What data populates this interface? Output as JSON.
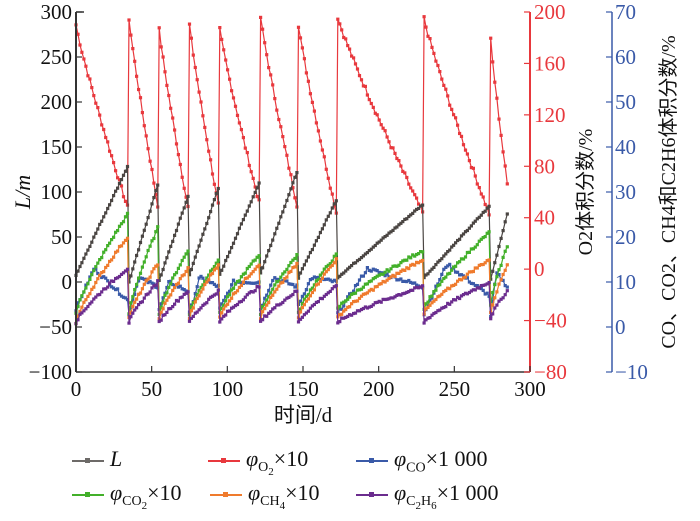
{
  "chart_data": {
    "type": "line",
    "xlabel": "时间/d",
    "ylabel_left": "L/m",
    "ylabel_right1": "O2体积分数/%",
    "ylabel_right2": "CO、CO2、CH4和C2H6体积分数/%",
    "xlim": [
      0,
      300
    ],
    "ylim_left": [
      -100,
      300
    ],
    "ylim_right1": [
      -80,
      200
    ],
    "ylim_right2": [
      -10,
      70
    ],
    "x_ticks": [
      "0",
      "50",
      "100",
      "150",
      "200",
      "250",
      "300"
    ],
    "y_left_ticks": [
      "300",
      "250",
      "200",
      "150",
      "100",
      "50",
      "0",
      "−50",
      "−100"
    ],
    "y_right1_ticks": [
      "200",
      "160",
      "120",
      "80",
      "40",
      "0",
      "−40",
      "−80"
    ],
    "y_right2_ticks": [
      "70",
      "60",
      "50",
      "40",
      "30",
      "20",
      "10",
      "0",
      "−10"
    ],
    "segments": [
      [
        0,
        34
      ],
      [
        35,
        54
      ],
      [
        55,
        74
      ],
      [
        75,
        94
      ],
      [
        95,
        121
      ],
      [
        122,
        146
      ],
      [
        147,
        172
      ],
      [
        173,
        229
      ],
      [
        230,
        273
      ],
      [
        274,
        285
      ]
    ],
    "series": [
      {
        "name": "L",
        "axis": "left",
        "color": "#4a4542",
        "seg_start": [
          8,
          0,
          2,
          8,
          8,
          10,
          5,
          5,
          5,
          3
        ],
        "seg_end": [
          128,
          108,
          95,
          104,
          110,
          122,
          91,
          86,
          84,
          76
        ]
      },
      {
        "name": "φO2×10",
        "axis": "right1",
        "color": "#e8383d",
        "seg_start": [
          190,
          195,
          186,
          190,
          186,
          196,
          190,
          196,
          195,
          178
        ],
        "seg_end": [
          48,
          50,
          48,
          50,
          52,
          50,
          44,
          44,
          43,
          66
        ]
      },
      {
        "name": "φCO×1000",
        "axis": "right2",
        "color": "#3a5aa8",
        "seg_start": [
          4,
          3,
          4,
          3,
          4,
          4,
          5,
          3,
          3,
          2
        ],
        "seg_peak": [
          13,
          11,
          10,
          11,
          10,
          11,
          11,
          13,
          14,
          12
        ],
        "seg_end": [
          6,
          9,
          8,
          9,
          10,
          9,
          10,
          9,
          7,
          9
        ]
      },
      {
        "name": "φCO2×10",
        "axis": "right2",
        "color": "#43b02a",
        "seg_start": [
          3,
          3,
          3,
          3,
          3,
          3,
          3,
          4,
          4,
          5
        ],
        "seg_end": [
          25,
          22,
          17,
          15,
          16,
          16,
          16,
          17,
          21,
          18
        ]
      },
      {
        "name": "φCH4×10",
        "axis": "right2",
        "color": "#ef7b2d",
        "seg_start": [
          1,
          2,
          2,
          2,
          2,
          2,
          2,
          2,
          3,
          3
        ],
        "seg_end": [
          20,
          14,
          13,
          14,
          14,
          14,
          15,
          15,
          15,
          14
        ]
      },
      {
        "name": "φC2H6×1000",
        "axis": "right2",
        "color": "#6b2c8e",
        "seg_start": [
          1,
          1,
          1,
          1,
          1,
          1,
          1,
          1,
          1,
          2
        ],
        "seg_end": [
          13,
          10,
          8,
          8,
          9,
          8,
          9,
          9,
          10,
          8
        ]
      }
    ]
  },
  "legend": [
    {
      "key": "L",
      "sym": "L",
      "sub": "",
      "mult": "",
      "color": "#6d6a68"
    },
    {
      "key": "o2",
      "sym": "φ",
      "sub": "O",
      "subsub": "2",
      "mult": "×10",
      "color": "#e8383d"
    },
    {
      "key": "co",
      "sym": "φ",
      "sub": "CO",
      "subsub": "",
      "mult": "×1 000",
      "color": "#3a5aa8"
    },
    {
      "key": "co2",
      "sym": "φ",
      "sub": "CO",
      "subsub": "2",
      "mult": "×10",
      "color": "#43b02a"
    },
    {
      "key": "ch4",
      "sym": "φ",
      "sub": "CH",
      "subsub": "4",
      "mult": "×10",
      "color": "#ef7b2d"
    },
    {
      "key": "c2h6",
      "sym": "φ",
      "sub": "C",
      "subsub": "2",
      "sub2": "H",
      "subsub2": "6",
      "mult": "×1 000",
      "color": "#6b2c8e"
    }
  ]
}
